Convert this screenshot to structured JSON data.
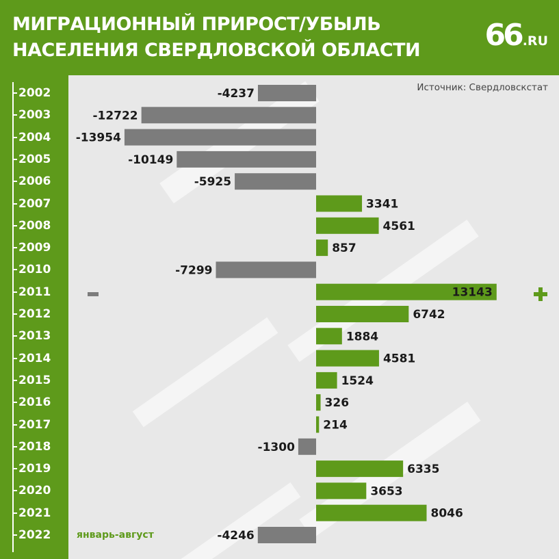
{
  "header": {
    "title_line1": "МИГРАЦИОННЫЙ ПРИРОСТ/УБЫЛЬ",
    "title_line2": "НАСЕЛЕНИЯ СВЕРДЛОВСКОЙ ОБЛАСТИ",
    "logo_main": "66",
    "logo_suffix": ".RU"
  },
  "source": "Источник: Свердловскстат",
  "note": "январь-август",
  "legend": {
    "positive_icon": "plus-icon",
    "negative_icon": "minus-icon"
  },
  "colors": {
    "brand": "#5e9a1b",
    "positive": "#5e9a1b",
    "negative": "#7c7c7c",
    "background": "#e8e8e8"
  },
  "chart_data": {
    "type": "bar",
    "orientation": "horizontal",
    "title": "МИГРАЦИОННЫЙ ПРИРОСТ/УБЫЛЬ НАСЕЛЕНИЯ СВЕРДЛОВСКОЙ ОБЛАСТИ",
    "categories": [
      "2002",
      "2003",
      "2004",
      "2005",
      "2006",
      "2007",
      "2008",
      "2009",
      "2010",
      "2011",
      "2012",
      "2013",
      "2014",
      "2015",
      "2016",
      "2017",
      "2018",
      "2019",
      "2020",
      "2021",
      "2022"
    ],
    "values": [
      -4237,
      -12722,
      -13954,
      -10149,
      -5925,
      3341,
      4561,
      857,
      -7299,
      13143,
      6742,
      1884,
      4581,
      1524,
      326,
      214,
      -1300,
      6335,
      3653,
      8046,
      -4246
    ],
    "labels": [
      "-4237",
      "-12722",
      "-13954",
      "-10149",
      "-5925",
      "3341",
      "4561",
      "857",
      "-7299",
      "13143",
      "6742",
      "1884",
      "4581",
      "1524",
      "326",
      "214",
      "-1300",
      "6335",
      "3653",
      "8046",
      "-4246"
    ],
    "xlim": [
      -14000,
      13143
    ],
    "grid": false
  }
}
